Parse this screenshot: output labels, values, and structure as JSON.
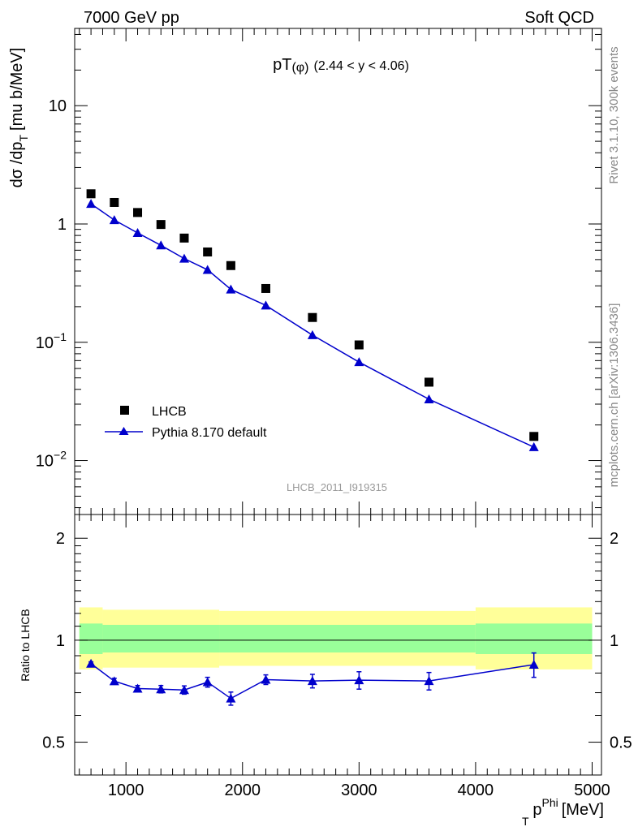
{
  "header": {
    "left": "7000 GeV pp",
    "right": "Soft QCD"
  },
  "side_labels": {
    "rivet": "Rivet 3.1.10,  300k events",
    "site": "mcplots.cern.ch [arXiv:1306.3436]"
  },
  "analysis_id": "LHCB_2011_I919315",
  "colors": {
    "pythia": "#0000cc",
    "data": "#000000",
    "band_inner": "#99ff99",
    "band_outer": "#ffff99"
  },
  "chart_data": [
    {
      "type": "scatter",
      "panel": "main",
      "title_main": "pT",
      "title_sub": "(φ)",
      "title_range": "(2.44 < y < 4.06)",
      "ylabel": "dσ /dp",
      "ylabel_sub": "T",
      "ylabel_unit": "[mu b/MeV]",
      "yscale": "log",
      "ylim": [
        0.0035,
        45
      ],
      "xlim": [
        560,
        5080
      ],
      "y_ticks": [
        {
          "value": 10,
          "label": "10"
        },
        {
          "value": 1,
          "label": "1"
        },
        {
          "value": 0.1,
          "label": "10",
          "exp": "−1"
        },
        {
          "value": 0.01,
          "label": "10",
          "exp": "−2"
        }
      ],
      "legend_position": "bottom-left",
      "series": [
        {
          "name": "LHCB",
          "marker": "square",
          "x": [
            700,
            900,
            1100,
            1300,
            1500,
            1700,
            1900,
            2200,
            2600,
            3000,
            3600,
            4500
          ],
          "y": [
            1.8,
            1.52,
            1.25,
            0.99,
            0.76,
            0.58,
            0.445,
            0.285,
            0.162,
            0.095,
            0.046,
            0.016
          ]
        },
        {
          "name": "Pythia 8.170 default",
          "marker": "triangle",
          "x": [
            700,
            900,
            1100,
            1300,
            1500,
            1700,
            1900,
            2200,
            2600,
            3000,
            3600,
            4500
          ],
          "y": [
            1.48,
            1.08,
            0.84,
            0.66,
            0.51,
            0.41,
            0.28,
            0.205,
            0.115,
            0.068,
            0.033,
            0.013
          ]
        }
      ]
    },
    {
      "type": "line",
      "panel": "ratio",
      "ylabel": "Ratio to LHCB",
      "xlabel": "p",
      "xlabel_sup": "Phi",
      "xlabel_sub": "T",
      "xlabel_unit": "[MeV]",
      "yscale": "log",
      "ylim": [
        0.4,
        2.35
      ],
      "xlim": [
        560,
        5080
      ],
      "y_ticks": [
        {
          "value": 2,
          "label": "2"
        },
        {
          "value": 1,
          "label": "1"
        },
        {
          "value": 0.5,
          "label": "0.5"
        }
      ],
      "x_ticks": [
        {
          "value": 1000,
          "label": "1000"
        },
        {
          "value": 2000,
          "label": "2000"
        },
        {
          "value": 3000,
          "label": "3000"
        },
        {
          "value": 4000,
          "label": "4000"
        },
        {
          "value": 5000,
          "label": "5000"
        }
      ],
      "bands": [
        {
          "x0": 600,
          "x1": 800,
          "inner": [
            0.91,
            1.12
          ],
          "outer": [
            0.82,
            1.25
          ]
        },
        {
          "x0": 800,
          "x1": 1800,
          "inner": [
            0.92,
            1.11
          ],
          "outer": [
            0.83,
            1.23
          ]
        },
        {
          "x0": 1800,
          "x1": 4000,
          "inner": [
            0.92,
            1.11
          ],
          "outer": [
            0.84,
            1.22
          ]
        },
        {
          "x0": 4000,
          "x1": 5000,
          "inner": [
            0.91,
            1.12
          ],
          "outer": [
            0.82,
            1.25
          ]
        }
      ],
      "reference_line": 1,
      "series": [
        {
          "name": "Pythia 8.170 default",
          "x": [
            700,
            900,
            1100,
            1300,
            1500,
            1700,
            1900,
            2200,
            2600,
            3000,
            3600,
            4500
          ],
          "y": [
            0.853,
            0.757,
            0.72,
            0.717,
            0.713,
            0.752,
            0.673,
            0.765,
            0.758,
            0.762,
            0.758,
            0.847
          ],
          "err": [
            0.01,
            0.015,
            0.015,
            0.018,
            0.02,
            0.025,
            0.03,
            0.025,
            0.035,
            0.045,
            0.045,
            0.07
          ]
        }
      ]
    }
  ]
}
